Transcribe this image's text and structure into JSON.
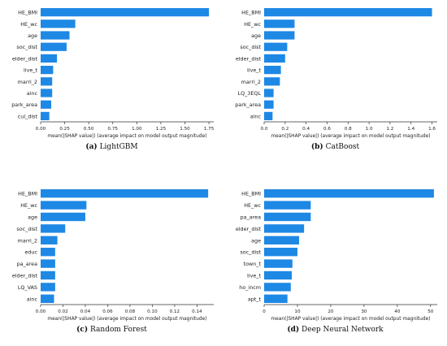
{
  "colors": {
    "bar": "#1e88e5",
    "axis": "#333333",
    "text": "#222222"
  },
  "chart_data": [
    {
      "type": "bar",
      "orientation": "horizontal",
      "caption_letter": "(a)",
      "caption_text": "LightGBM",
      "categories": [
        "HE_BMI",
        "HE_wc",
        "age",
        "soc_dist",
        "elder_dist",
        "live_t",
        "marri_2",
        "ainc",
        "park_area",
        "cul_dist"
      ],
      "values": [
        1.75,
        0.36,
        0.3,
        0.27,
        0.17,
        0.13,
        0.12,
        0.12,
        0.11,
        0.09
      ],
      "xlim": [
        0,
        1.8
      ],
      "xticks": [
        "0.00",
        "0.25",
        "0.50",
        "0.75",
        "1.00",
        "1.25",
        "1.50",
        "1.75"
      ],
      "xtick_values": [
        0,
        0.25,
        0.5,
        0.75,
        1.0,
        1.25,
        1.5,
        1.75
      ],
      "xlabel": "mean(|SHAP value|) (average impact on model output magnitude)"
    },
    {
      "type": "bar",
      "orientation": "horizontal",
      "caption_letter": "(b)",
      "caption_text": "CatBoost",
      "categories": [
        "HE_BMI",
        "HE_wc",
        "age",
        "soc_dist",
        "elder_dist",
        "live_t",
        "marri_2",
        "LQ_3EQL",
        "park_area",
        "ainc"
      ],
      "values": [
        1.6,
        0.29,
        0.29,
        0.22,
        0.2,
        0.16,
        0.15,
        0.09,
        0.09,
        0.08
      ],
      "xlim": [
        0,
        1.65
      ],
      "xticks": [
        "0.0",
        "0.2",
        "0.4",
        "0.6",
        "0.8",
        "1.0",
        "1.2",
        "1.4",
        "1.6"
      ],
      "xtick_values": [
        0,
        0.2,
        0.4,
        0.6,
        0.8,
        1.0,
        1.2,
        1.4,
        1.6
      ],
      "xlabel": "mean(|SHAP value|) (average impact on model output magnitude)"
    },
    {
      "type": "bar",
      "orientation": "horizontal",
      "caption_letter": "(c)",
      "caption_text": "Random Forest",
      "categories": [
        "HE_BMI",
        "HE_wc",
        "age",
        "soc_dist",
        "marri_2",
        "educ",
        "pa_area",
        "elder_dist",
        "LQ_VAS",
        "ainc"
      ],
      "values": [
        0.15,
        0.041,
        0.04,
        0.022,
        0.015,
        0.013,
        0.013,
        0.013,
        0.013,
        0.012
      ],
      "xlim": [
        0,
        0.155
      ],
      "xticks": [
        "0.00",
        "0.02",
        "0.04",
        "0.06",
        "0.08",
        "0.10",
        "0.12",
        "0.14"
      ],
      "xtick_values": [
        0,
        0.02,
        0.04,
        0.06,
        0.08,
        0.1,
        0.12,
        0.14
      ],
      "xlabel": "mean(|SHAP value|) (average impact on model output magnitude)"
    },
    {
      "type": "bar",
      "orientation": "horizontal",
      "caption_letter": "(d)",
      "caption_text": "Deep Neural Network",
      "categories": [
        "HE_BMI",
        "HE_wc",
        "pa_area",
        "elder_dist",
        "age",
        "soc_dist",
        "town_t",
        "live_t",
        "ho_incm",
        "apt_t"
      ],
      "values": [
        51,
        14,
        14,
        12,
        10.5,
        10,
        8.5,
        8.3,
        8,
        7
      ],
      "xlim": [
        0,
        52
      ],
      "xticks": [
        "0",
        "10",
        "20",
        "30",
        "40",
        "50"
      ],
      "xtick_values": [
        0,
        10,
        20,
        30,
        40,
        50
      ],
      "xlabel": "mean(|SHAP value|) (average impact on model output magnitude)"
    }
  ]
}
